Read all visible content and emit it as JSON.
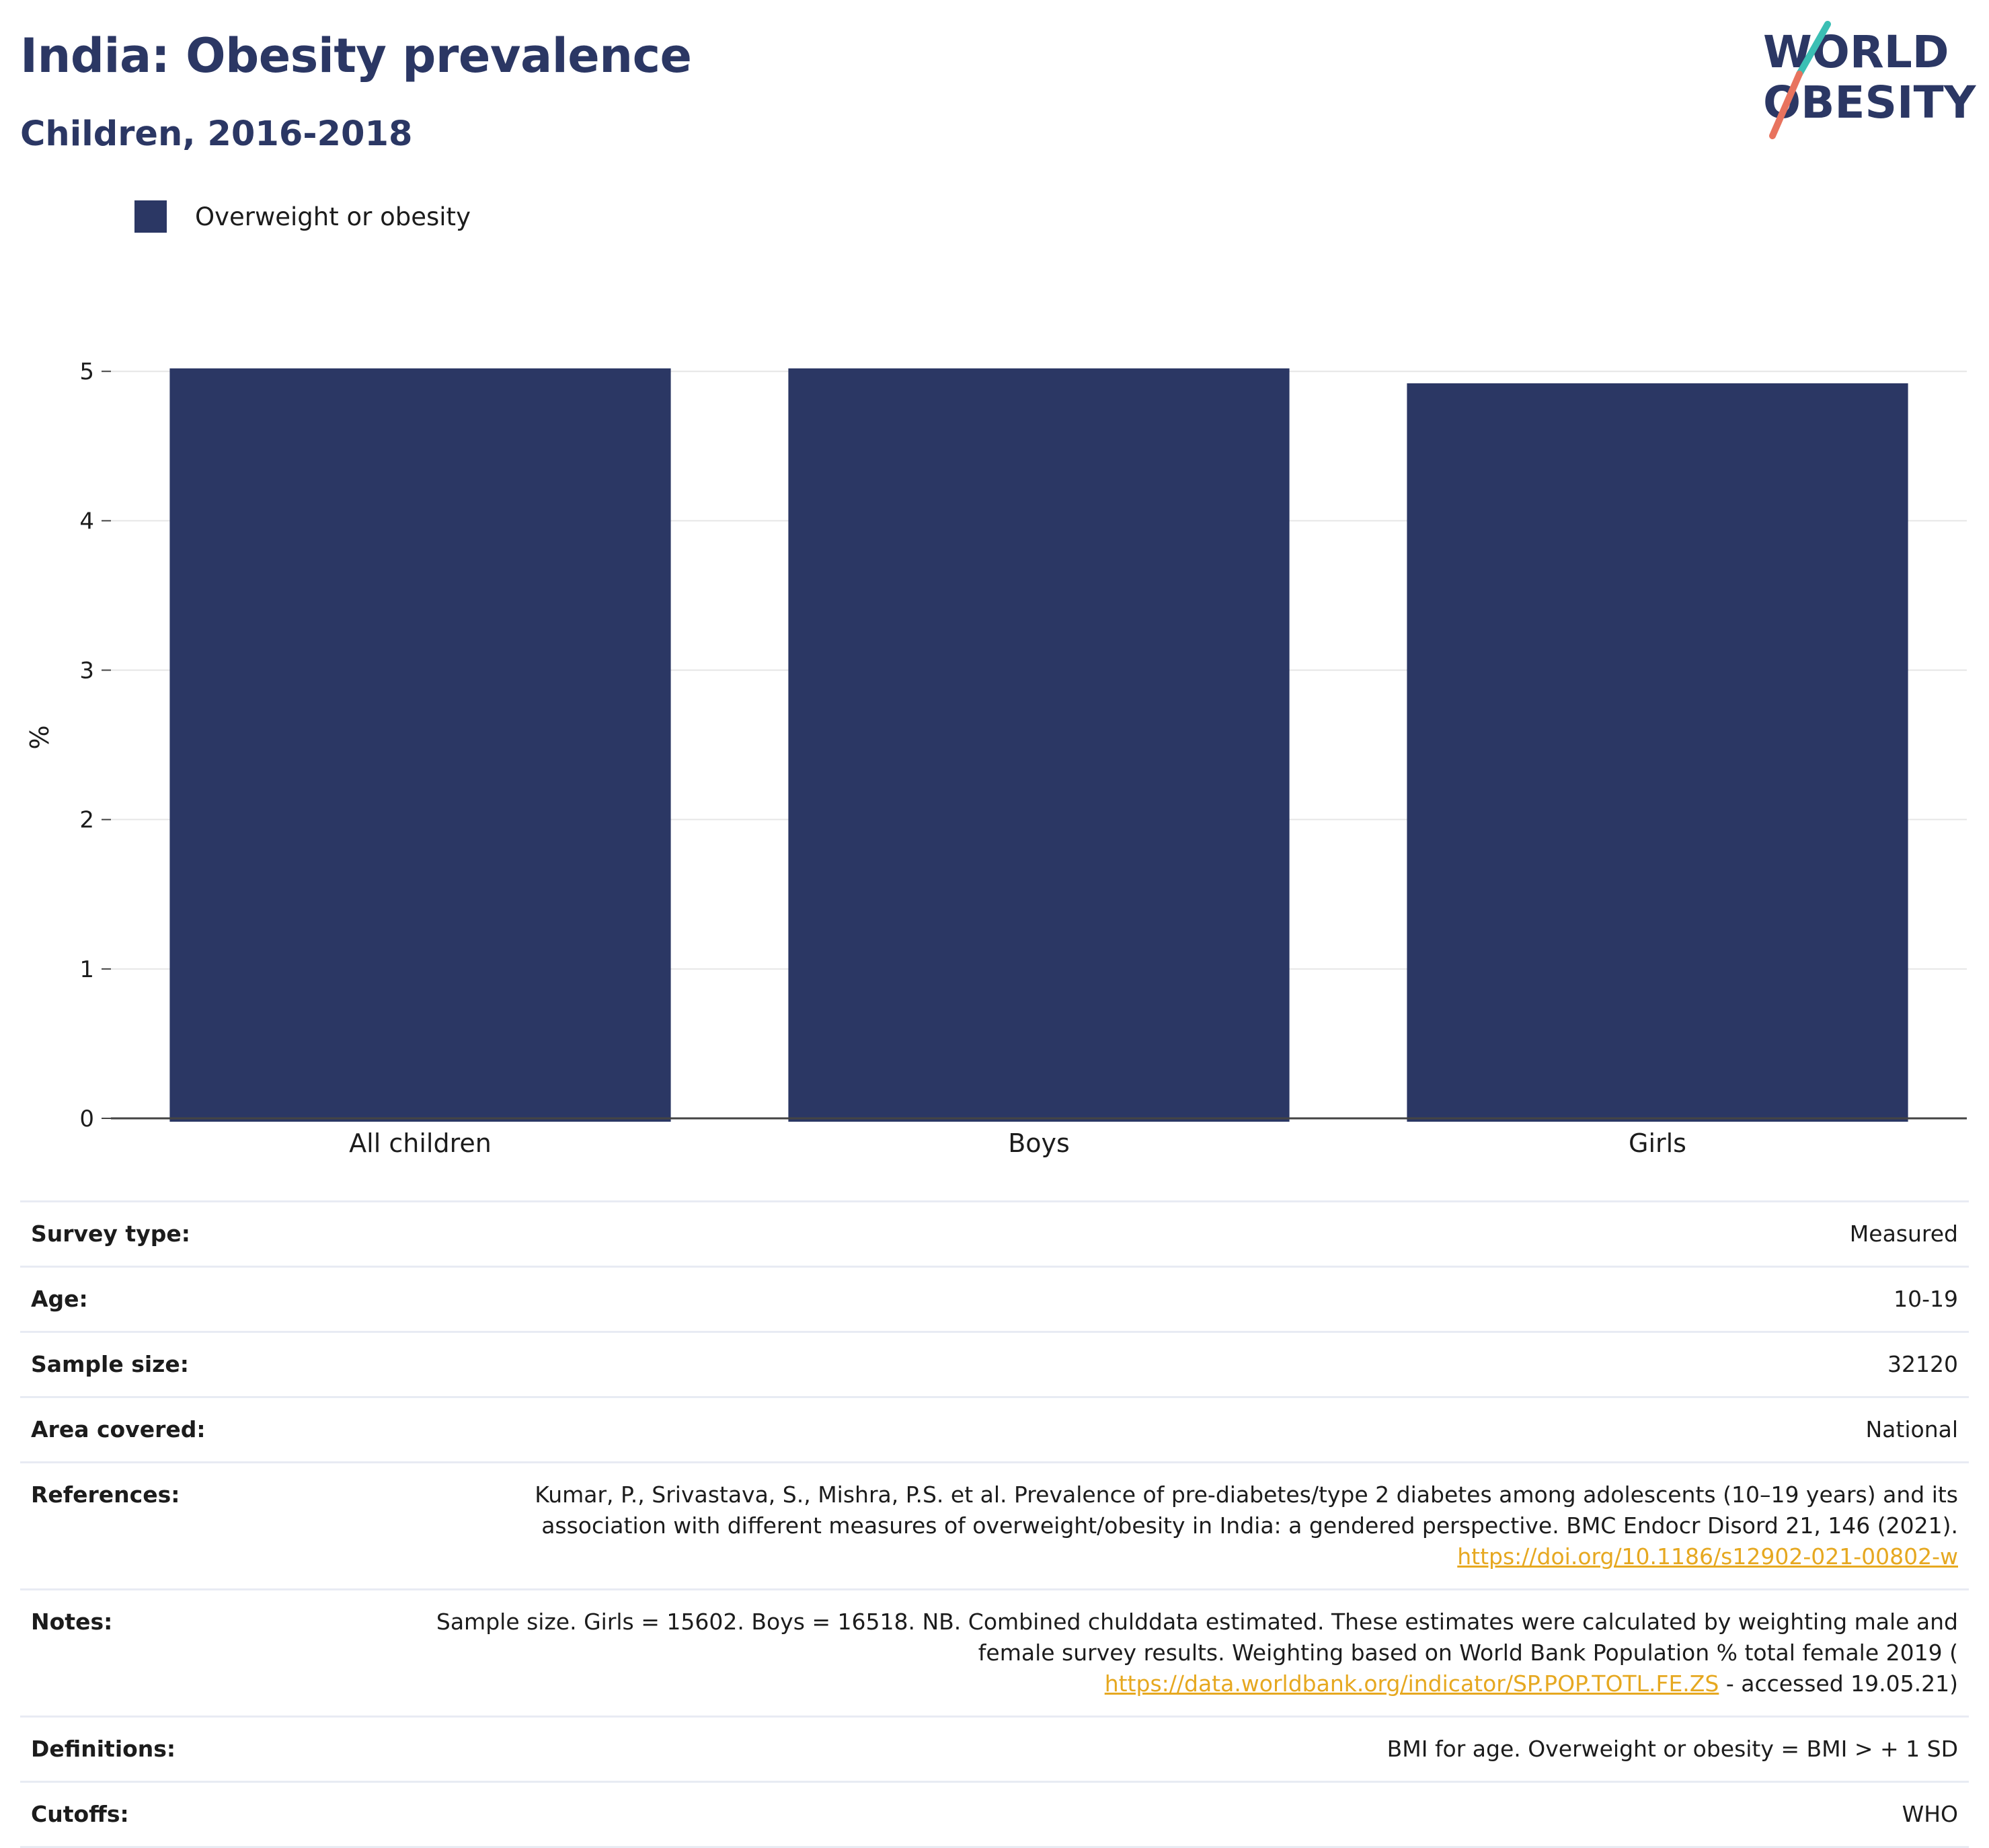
{
  "header": {
    "title": "India: Obesity prevalence",
    "subtitle": "Children, 2016-2018"
  },
  "logo": {
    "line1": "WORLD",
    "line2": "OBESITY"
  },
  "chart_data": {
    "type": "bar",
    "categories": [
      "All children",
      "Boys",
      "Girls"
    ],
    "series": [
      {
        "name": "Overweight or obesity",
        "color": "#2b3764",
        "values": [
          5.02,
          5.02,
          4.92
        ]
      }
    ],
    "ylabel": "%",
    "xlabel": "",
    "ylim": [
      0,
      5.1
    ],
    "yticks": [
      0,
      1,
      2,
      3,
      4,
      5
    ],
    "grid": true,
    "legend_position": "top-left"
  },
  "meta": {
    "survey_type": {
      "label": "Survey type:",
      "value": "Measured"
    },
    "age": {
      "label": "Age:",
      "value": "10-19"
    },
    "sample_size": {
      "label": "Sample size:",
      "value": "32120"
    },
    "area": {
      "label": "Area covered:",
      "value": "National"
    },
    "references": {
      "label": "References:",
      "text1": "Kumar, P., Srivastava, S., Mishra, P.S. et al. Prevalence of pre-diabetes/type 2 diabetes among adolescents (10–19 years) and its",
      "text2": "association with different measures of overweight/obesity in India: a gendered perspective. BMC Endocr Disord 21, 146 (2021).",
      "link": "https://doi.org/10.1186/s12902-021-00802-w"
    },
    "notes": {
      "label": "Notes:",
      "text1": "Sample size. Girls = 15602. Boys = 16518. NB. Combined chulddata estimated. These estimates were calculated by weighting male and",
      "text2": "female survey results. Weighting based on World Bank Population % total female 2019 (",
      "link": "https://data.worldbank.org/indicator/SP.POP.TOTL.FE.ZS",
      "suffix": " - accessed 19.05.21)"
    },
    "definitions": {
      "label": "Definitions:",
      "value": "BMI for age. Overweight or obesity = BMI > + 1 SD"
    },
    "cutoffs": {
      "label": "Cutoffs:",
      "value": "WHO"
    }
  }
}
